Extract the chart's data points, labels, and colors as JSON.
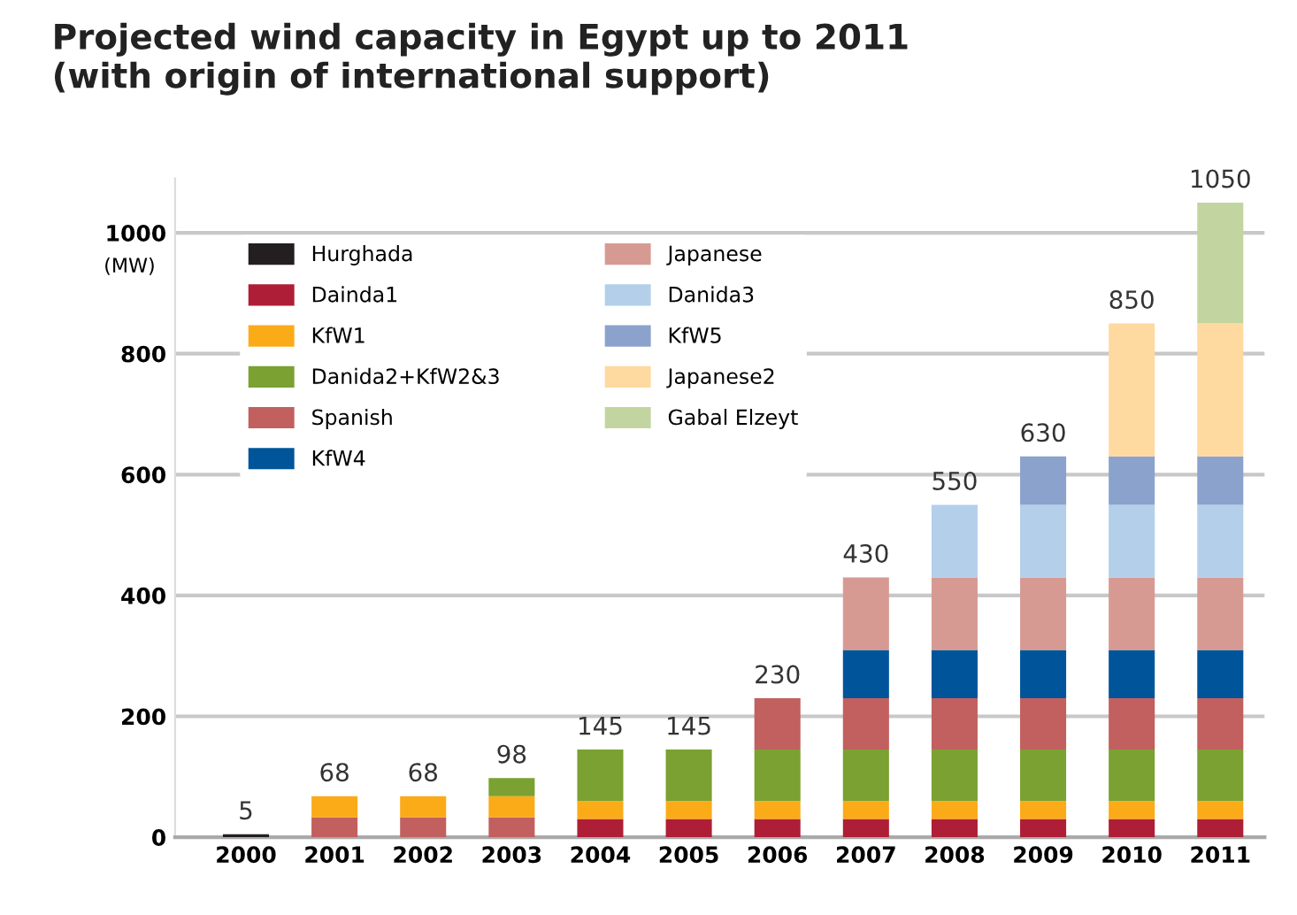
{
  "chart_data": {
    "type": "bar",
    "stacked": true,
    "title": "Projected wind capacity in Egypt up to 2011\n(with origin of international support)",
    "ylabel": "(MW)",
    "categories": [
      "2000",
      "2001",
      "2002",
      "2003",
      "2004",
      "2005",
      "2006",
      "2007",
      "2008",
      "2009",
      "2010",
      "2011"
    ],
    "series": [
      {
        "name": "Hurghada",
        "color": "#231f20",
        "values": [
          5,
          0,
          0,
          0,
          0,
          0,
          0,
          0,
          0,
          0,
          0,
          0
        ]
      },
      {
        "name": "Dainda1",
        "color": "#ae1e37",
        "values": [
          0,
          0,
          0,
          0,
          30,
          30,
          30,
          30,
          30,
          30,
          30,
          30
        ]
      },
      {
        "color": "#c1605e",
        "values": [
          0,
          33,
          33,
          33,
          0,
          0,
          0,
          0,
          0,
          0,
          0,
          0
        ]
      },
      {
        "name": "KfW1",
        "color": "#fbab18",
        "values": [
          0,
          35,
          35,
          35,
          30,
          30,
          30,
          30,
          30,
          30,
          30,
          30
        ]
      },
      {
        "name": "Danida2+KfW2&3",
        "color": "#7aa131",
        "values": [
          0,
          0,
          0,
          30,
          85,
          85,
          85,
          85,
          85,
          85,
          85,
          85
        ]
      },
      {
        "name": "Spanish",
        "color": "#c1605e",
        "values": [
          0,
          0,
          0,
          0,
          0,
          0,
          85,
          85,
          85,
          85,
          85,
          85
        ]
      },
      {
        "name": "KfW4",
        "color": "#00559a",
        "values": [
          0,
          0,
          0,
          0,
          0,
          0,
          0,
          80,
          80,
          80,
          80,
          80
        ]
      },
      {
        "name": "Japanese",
        "color": "#d79a93",
        "values": [
          0,
          0,
          0,
          0,
          0,
          0,
          0,
          120,
          120,
          120,
          120,
          120
        ]
      },
      {
        "name": "Danida3",
        "color": "#b3cfea",
        "values": [
          0,
          0,
          0,
          0,
          0,
          0,
          0,
          0,
          120,
          120,
          120,
          120
        ]
      },
      {
        "name": "KfW5",
        "color": "#8aa2cc",
        "values": [
          0,
          0,
          0,
          0,
          0,
          0,
          0,
          0,
          0,
          80,
          80,
          80
        ]
      },
      {
        "name": "Japanese2",
        "color": "#fed9a0",
        "values": [
          0,
          0,
          0,
          0,
          0,
          0,
          0,
          0,
          0,
          0,
          220,
          220
        ]
      },
      {
        "name": "Gabal Elzeyt",
        "color": "#c2d5a0",
        "values": [
          0,
          0,
          0,
          0,
          0,
          0,
          0,
          0,
          0,
          0,
          0,
          200
        ]
      }
    ],
    "totals": [
      "5",
      "68",
      "68",
      "98",
      "145",
      "145",
      "230",
      "430",
      "550",
      "630",
      "850",
      "1050"
    ],
    "ylim": [
      0,
      1090
    ],
    "yticks": [
      0,
      200,
      400,
      600,
      800,
      1000
    ],
    "grid": "y",
    "legend": "top left"
  }
}
